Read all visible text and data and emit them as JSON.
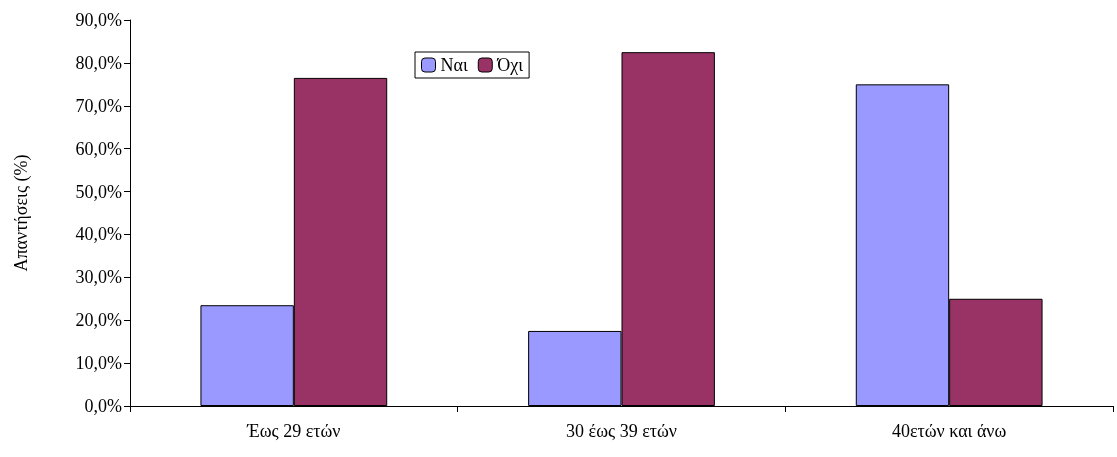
{
  "chart_data": {
    "type": "bar",
    "ylabel": "Απαντήσεις (%)",
    "categories": [
      "Έως 29 ετών",
      "30 έως 39 ετών",
      "40ετών και άνω"
    ],
    "series": [
      {
        "name": "Ναι",
        "color": "#9999ff",
        "values": [
          23.5,
          17.5,
          75
        ]
      },
      {
        "name": "Όχι",
        "color": "#993366",
        "values": [
          76.5,
          82.5,
          25
        ]
      }
    ],
    "ylim": [
      0,
      90
    ],
    "yticks": [
      {
        "value": 0,
        "label": "0,0%"
      },
      {
        "value": 10,
        "label": "10,0%"
      },
      {
        "value": 20,
        "label": "20,0%"
      },
      {
        "value": 30,
        "label": "30,0%"
      },
      {
        "value": 40,
        "label": "40,0%"
      },
      {
        "value": 50,
        "label": "50,0%"
      },
      {
        "value": 60,
        "label": "60,0%"
      },
      {
        "value": 70,
        "label": "70,0%"
      },
      {
        "value": 80,
        "label": "80,0%"
      },
      {
        "value": 90,
        "label": "90,0%"
      }
    ],
    "grid": false,
    "legend": "top"
  }
}
